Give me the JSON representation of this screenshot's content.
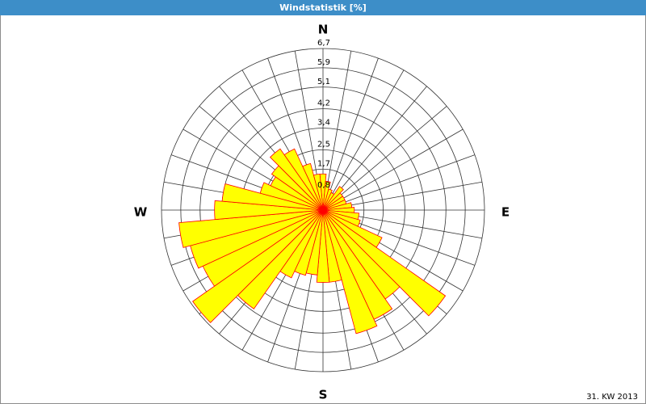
{
  "chart_data": {
    "type": "rose",
    "title": "Windstatistik [%]",
    "x": [
      0,
      10,
      20,
      30,
      40,
      50,
      60,
      70,
      80,
      90,
      100,
      110,
      120,
      130,
      140,
      150,
      160,
      170,
      180,
      190,
      200,
      210,
      220,
      230,
      240,
      250,
      260,
      270,
      280,
      290,
      300,
      310,
      320,
      330,
      340,
      350
    ],
    "values": [
      1.5,
      1.2,
      0.9,
      0.8,
      1.2,
      1.0,
      1.0,
      1.0,
      1.2,
      1.3,
      1.5,
      1.6,
      2.7,
      6.2,
      4.5,
      5.0,
      5.3,
      3.0,
      3.0,
      2.7,
      2.8,
      3.1,
      5.0,
      6.6,
      5.5,
      5.7,
      6.0,
      4.5,
      4.2,
      2.7,
      2.4,
      2.6,
      3.1,
      2.8,
      2.0,
      1.5
    ],
    "color": "#ffff00",
    "edge_color": "#ff0000",
    "rlim": [
      0,
      6.7
    ],
    "rticks": [
      {
        "value": 0.8,
        "label": "0,8"
      },
      {
        "value": 1.7,
        "label": "1,7"
      },
      {
        "value": 2.5,
        "label": "2,5"
      },
      {
        "value": 3.4,
        "label": "3,4"
      },
      {
        "value": 4.2,
        "label": "4,2"
      },
      {
        "value": 5.1,
        "label": "5,1"
      },
      {
        "value": 5.9,
        "label": "5,9"
      },
      {
        "value": 6.7,
        "label": "6,7"
      }
    ],
    "compass_labels": [
      "N",
      "E",
      "S",
      "W"
    ],
    "note": "31. KW 2013"
  }
}
